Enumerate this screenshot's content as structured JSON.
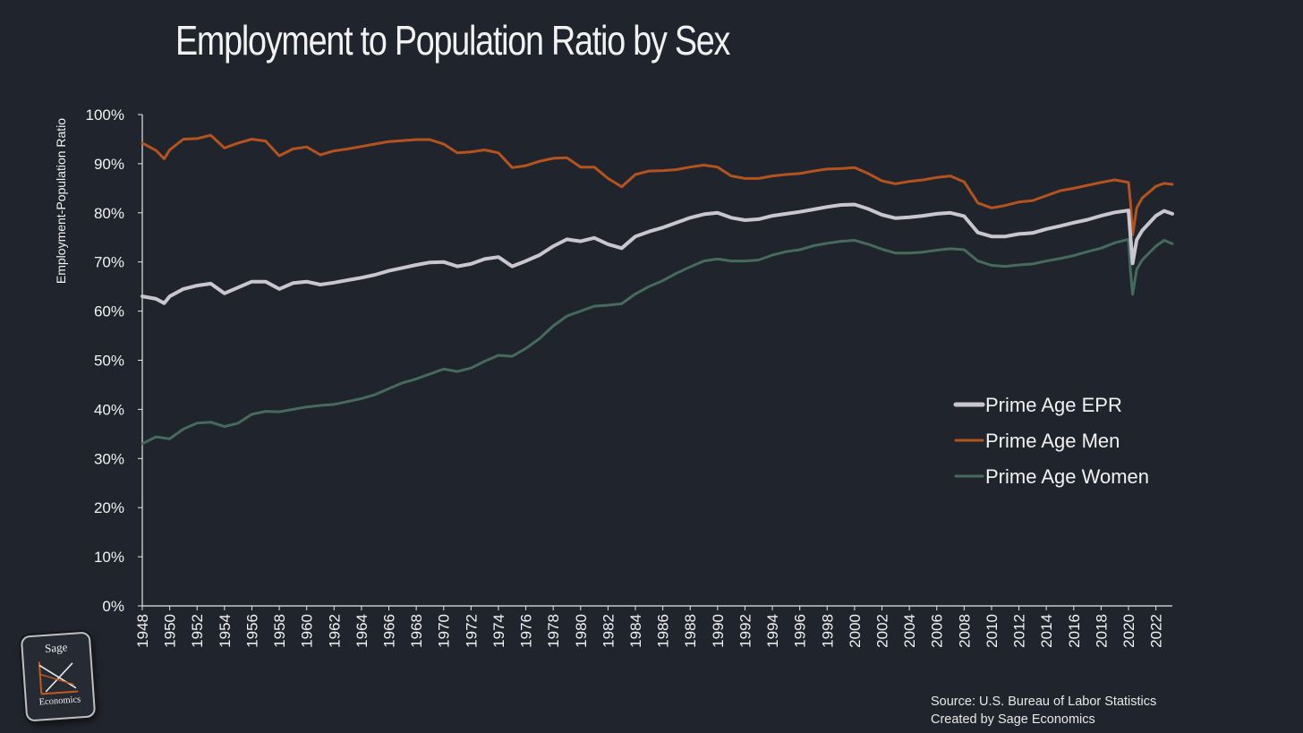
{
  "chart_data": {
    "type": "line",
    "title": "Employment to Population Ratio by Sex",
    "ylabel": "Employment-Population Ratio",
    "xlabel": "",
    "ylim": [
      0,
      100
    ],
    "xlim": [
      1948,
      2023.2
    ],
    "y_ticks": [
      "0%",
      "10%",
      "20%",
      "30%",
      "40%",
      "50%",
      "60%",
      "70%",
      "80%",
      "90%",
      "100%"
    ],
    "y_tick_values": [
      0,
      10,
      20,
      30,
      40,
      50,
      60,
      70,
      80,
      90,
      100
    ],
    "x_ticks": [
      "1948",
      "1950",
      "1952",
      "1954",
      "1956",
      "1958",
      "1960",
      "1962",
      "1964",
      "1966",
      "1968",
      "1970",
      "1972",
      "1974",
      "1976",
      "1978",
      "1980",
      "1982",
      "1984",
      "1986",
      "1988",
      "1990",
      "1992",
      "1994",
      "1996",
      "1998",
      "2000",
      "2002",
      "2004",
      "2006",
      "2008",
      "2010",
      "2012",
      "2014",
      "2016",
      "2018",
      "2020",
      "2022"
    ],
    "grid": false,
    "legend_position": "right",
    "series": [
      {
        "name": "Prime Age EPR",
        "color": "#c9c6d0",
        "points": [
          [
            1948,
            63
          ],
          [
            1949,
            62.5
          ],
          [
            1949.6,
            61.6
          ],
          [
            1950,
            63
          ],
          [
            1951,
            64.5
          ],
          [
            1952,
            65.2
          ],
          [
            1953,
            65.6
          ],
          [
            1954,
            63.6
          ],
          [
            1955,
            64.8
          ],
          [
            1956,
            66
          ],
          [
            1957,
            66
          ],
          [
            1958,
            64.5
          ],
          [
            1959,
            65.7
          ],
          [
            1960,
            66
          ],
          [
            1961,
            65.4
          ],
          [
            1962,
            65.8
          ],
          [
            1963,
            66.3
          ],
          [
            1964,
            66.8
          ],
          [
            1965,
            67.4
          ],
          [
            1966,
            68.2
          ],
          [
            1967,
            68.8
          ],
          [
            1968,
            69.4
          ],
          [
            1969,
            69.9
          ],
          [
            1970,
            70
          ],
          [
            1971,
            69.1
          ],
          [
            1972,
            69.6
          ],
          [
            1973,
            70.6
          ],
          [
            1974,
            71
          ],
          [
            1975,
            69.1
          ],
          [
            1976,
            70.2
          ],
          [
            1977,
            71.4
          ],
          [
            1978,
            73.2
          ],
          [
            1979,
            74.6
          ],
          [
            1980,
            74.2
          ],
          [
            1981,
            74.9
          ],
          [
            1982,
            73.6
          ],
          [
            1983,
            72.8
          ],
          [
            1984,
            75.2
          ],
          [
            1985,
            76.2
          ],
          [
            1986,
            77
          ],
          [
            1987,
            78
          ],
          [
            1988,
            79
          ],
          [
            1989,
            79.7
          ],
          [
            1990,
            80
          ],
          [
            1991,
            79
          ],
          [
            1992,
            78.5
          ],
          [
            1993,
            78.7
          ],
          [
            1994,
            79.4
          ],
          [
            1995,
            79.8
          ],
          [
            1996,
            80.2
          ],
          [
            1997,
            80.7
          ],
          [
            1998,
            81.2
          ],
          [
            1999,
            81.6
          ],
          [
            2000,
            81.7
          ],
          [
            2001,
            80.8
          ],
          [
            2002,
            79.6
          ],
          [
            2003,
            78.9
          ],
          [
            2004,
            79.1
          ],
          [
            2005,
            79.4
          ],
          [
            2006,
            79.8
          ],
          [
            2007,
            80
          ],
          [
            2008,
            79.3
          ],
          [
            2009,
            76
          ],
          [
            2010,
            75.2
          ],
          [
            2011,
            75.2
          ],
          [
            2012,
            75.7
          ],
          [
            2013,
            75.9
          ],
          [
            2014,
            76.7
          ],
          [
            2015,
            77.3
          ],
          [
            2016,
            78
          ],
          [
            2017,
            78.6
          ],
          [
            2018,
            79.4
          ],
          [
            2019,
            80.1
          ],
          [
            2020,
            80.5
          ],
          [
            2020.15,
            75
          ],
          [
            2020.3,
            69.7
          ],
          [
            2020.6,
            74.5
          ],
          [
            2021,
            76.4
          ],
          [
            2022,
            79.4
          ],
          [
            2022.6,
            80.4
          ],
          [
            2023.2,
            79.8
          ]
        ]
      },
      {
        "name": "Prime Age Men",
        "color": "#b5531f",
        "points": [
          [
            1948,
            94.2
          ],
          [
            1949,
            92.7
          ],
          [
            1949.6,
            91
          ],
          [
            1950,
            92.8
          ],
          [
            1951,
            95
          ],
          [
            1952,
            95.1
          ],
          [
            1953,
            95.8
          ],
          [
            1954,
            93.2
          ],
          [
            1955,
            94.2
          ],
          [
            1956,
            95
          ],
          [
            1957,
            94.6
          ],
          [
            1958,
            91.6
          ],
          [
            1959,
            93
          ],
          [
            1960,
            93.4
          ],
          [
            1961,
            91.8
          ],
          [
            1962,
            92.6
          ],
          [
            1963,
            93
          ],
          [
            1964,
            93.5
          ],
          [
            1965,
            94
          ],
          [
            1966,
            94.5
          ],
          [
            1967,
            94.7
          ],
          [
            1968,
            94.9
          ],
          [
            1969,
            94.9
          ],
          [
            1970,
            94
          ],
          [
            1971,
            92.2
          ],
          [
            1972,
            92.4
          ],
          [
            1973,
            92.8
          ],
          [
            1974,
            92.2
          ],
          [
            1975,
            89.2
          ],
          [
            1976,
            89.6
          ],
          [
            1977,
            90.5
          ],
          [
            1978,
            91.1
          ],
          [
            1979,
            91.2
          ],
          [
            1980,
            89.3
          ],
          [
            1981,
            89.3
          ],
          [
            1982,
            87
          ],
          [
            1983,
            85.3
          ],
          [
            1984,
            87.8
          ],
          [
            1985,
            88.5
          ],
          [
            1986,
            88.6
          ],
          [
            1987,
            88.8
          ],
          [
            1988,
            89.3
          ],
          [
            1989,
            89.7
          ],
          [
            1990,
            89.3
          ],
          [
            1991,
            87.5
          ],
          [
            1992,
            87
          ],
          [
            1993,
            87
          ],
          [
            1994,
            87.5
          ],
          [
            1995,
            87.8
          ],
          [
            1996,
            88
          ],
          [
            1997,
            88.5
          ],
          [
            1998,
            88.9
          ],
          [
            1999,
            89
          ],
          [
            2000,
            89.2
          ],
          [
            2001,
            88
          ],
          [
            2002,
            86.5
          ],
          [
            2003,
            85.9
          ],
          [
            2004,
            86.4
          ],
          [
            2005,
            86.7
          ],
          [
            2006,
            87.2
          ],
          [
            2007,
            87.5
          ],
          [
            2008,
            86.3
          ],
          [
            2009,
            82
          ],
          [
            2010,
            81
          ],
          [
            2011,
            81.5
          ],
          [
            2012,
            82.2
          ],
          [
            2013,
            82.5
          ],
          [
            2014,
            83.5
          ],
          [
            2015,
            84.5
          ],
          [
            2016,
            85
          ],
          [
            2017,
            85.6
          ],
          [
            2018,
            86.2
          ],
          [
            2019,
            86.7
          ],
          [
            2020,
            86.2
          ],
          [
            2020.15,
            82
          ],
          [
            2020.3,
            75.5
          ],
          [
            2020.6,
            81
          ],
          [
            2021,
            83
          ],
          [
            2022,
            85.4
          ],
          [
            2022.6,
            86
          ],
          [
            2023.2,
            85.8
          ]
        ]
      },
      {
        "name": "Prime Age Women",
        "color": "#466b5c",
        "points": [
          [
            1948,
            33
          ],
          [
            1949,
            34.4
          ],
          [
            1950,
            34
          ],
          [
            1951,
            36
          ],
          [
            1952,
            37.2
          ],
          [
            1953,
            37.4
          ],
          [
            1954,
            36.5
          ],
          [
            1955,
            37.2
          ],
          [
            1956,
            39
          ],
          [
            1957,
            39.6
          ],
          [
            1958,
            39.5
          ],
          [
            1959,
            40
          ],
          [
            1960,
            40.5
          ],
          [
            1961,
            40.8
          ],
          [
            1962,
            41
          ],
          [
            1963,
            41.6
          ],
          [
            1964,
            42.2
          ],
          [
            1965,
            43
          ],
          [
            1966,
            44.2
          ],
          [
            1967,
            45.4
          ],
          [
            1968,
            46.2
          ],
          [
            1969,
            47.2
          ],
          [
            1970,
            48.2
          ],
          [
            1971,
            47.7
          ],
          [
            1972,
            48.4
          ],
          [
            1973,
            49.8
          ],
          [
            1974,
            51
          ],
          [
            1975,
            50.8
          ],
          [
            1976,
            52.4
          ],
          [
            1977,
            54.4
          ],
          [
            1978,
            57
          ],
          [
            1979,
            59
          ],
          [
            1980,
            60
          ],
          [
            1981,
            61
          ],
          [
            1982,
            61.2
          ],
          [
            1983,
            61.5
          ],
          [
            1984,
            63.5
          ],
          [
            1985,
            65
          ],
          [
            1986,
            66.2
          ],
          [
            1987,
            67.7
          ],
          [
            1988,
            69
          ],
          [
            1989,
            70.2
          ],
          [
            1990,
            70.6
          ],
          [
            1991,
            70.2
          ],
          [
            1992,
            70.2
          ],
          [
            1993,
            70.4
          ],
          [
            1994,
            71.4
          ],
          [
            1995,
            72.1
          ],
          [
            1996,
            72.5
          ],
          [
            1997,
            73.3
          ],
          [
            1998,
            73.8
          ],
          [
            1999,
            74.2
          ],
          [
            2000,
            74.4
          ],
          [
            2001,
            73.6
          ],
          [
            2002,
            72.6
          ],
          [
            2003,
            71.8
          ],
          [
            2004,
            71.8
          ],
          [
            2005,
            72
          ],
          [
            2006,
            72.4
          ],
          [
            2007,
            72.7
          ],
          [
            2008,
            72.5
          ],
          [
            2009,
            70.2
          ],
          [
            2010,
            69.3
          ],
          [
            2011,
            69.1
          ],
          [
            2012,
            69.4
          ],
          [
            2013,
            69.6
          ],
          [
            2014,
            70.2
          ],
          [
            2015,
            70.7
          ],
          [
            2016,
            71.3
          ],
          [
            2017,
            72.1
          ],
          [
            2018,
            72.8
          ],
          [
            2019,
            73.9
          ],
          [
            2020,
            74.6
          ],
          [
            2020.15,
            68
          ],
          [
            2020.3,
            63.4
          ],
          [
            2020.6,
            68.5
          ],
          [
            2021,
            70.4
          ],
          [
            2022,
            73.2
          ],
          [
            2022.6,
            74.4
          ],
          [
            2023.2,
            73.7
          ]
        ]
      }
    ],
    "source_line1": "Source: U.S. Bureau of Labor Statistics",
    "source_line2": "Created by Sage Economics"
  },
  "logo": {
    "top_text": "Sage",
    "bottom_text": "Economics",
    "accent": "#c25a1f"
  },
  "colors": {
    "background": "#20242c",
    "text": "#f2f2f2",
    "axis": "#e6e6e6"
  }
}
